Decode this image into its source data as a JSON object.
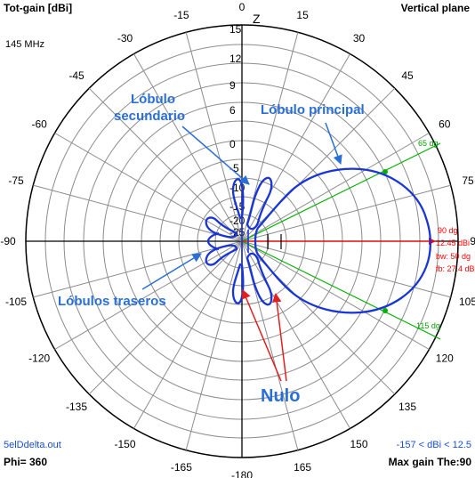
{
  "header": {
    "left_title": "Tot-gain [dBi]",
    "frequency": "145 MHz",
    "right_title": "Vertical plane"
  },
  "footer": {
    "file_name": "5elDdelta.out",
    "phi": "Phi= 360",
    "range": "-157 < dBi < 12.5",
    "max_gain": "Max gain The:90"
  },
  "axis": {
    "zenith_label": "Z",
    "angle_labels": [
      "0",
      "15",
      "30",
      "45",
      "60",
      "75",
      "90",
      "105",
      "120",
      "135",
      "150",
      "165",
      "-180",
      "-165",
      "-150",
      "-135",
      "-120",
      "-105",
      "-90",
      "-75",
      "-60",
      "-45",
      "-30",
      "-15"
    ],
    "gain_ticks": [
      "15",
      "12",
      "9",
      "6",
      "0",
      "-5",
      "-10",
      "-15",
      "-20",
      "-25"
    ]
  },
  "markers": {
    "beamwidth_upper": "65 dg",
    "beamwidth_lower": "115 dg",
    "info": [
      "90 dg",
      "12.45 dBi",
      "bw: 50 dg",
      "fb: 27.4 dB"
    ]
  },
  "annotations": {
    "secondary_lobe": [
      "Lóbulo",
      "secundario"
    ],
    "main_lobe": "Lóbulo principal",
    "back_lobes": "Lóbulos traseros",
    "null": "Nulo"
  },
  "colors": {
    "pattern": "#1a35d6",
    "grid": "#909090",
    "annotation": "#2a6fd6",
    "main_axis": "#ff0000",
    "beamwidth": "#00b000",
    "arrow_null": "#e02020"
  }
}
